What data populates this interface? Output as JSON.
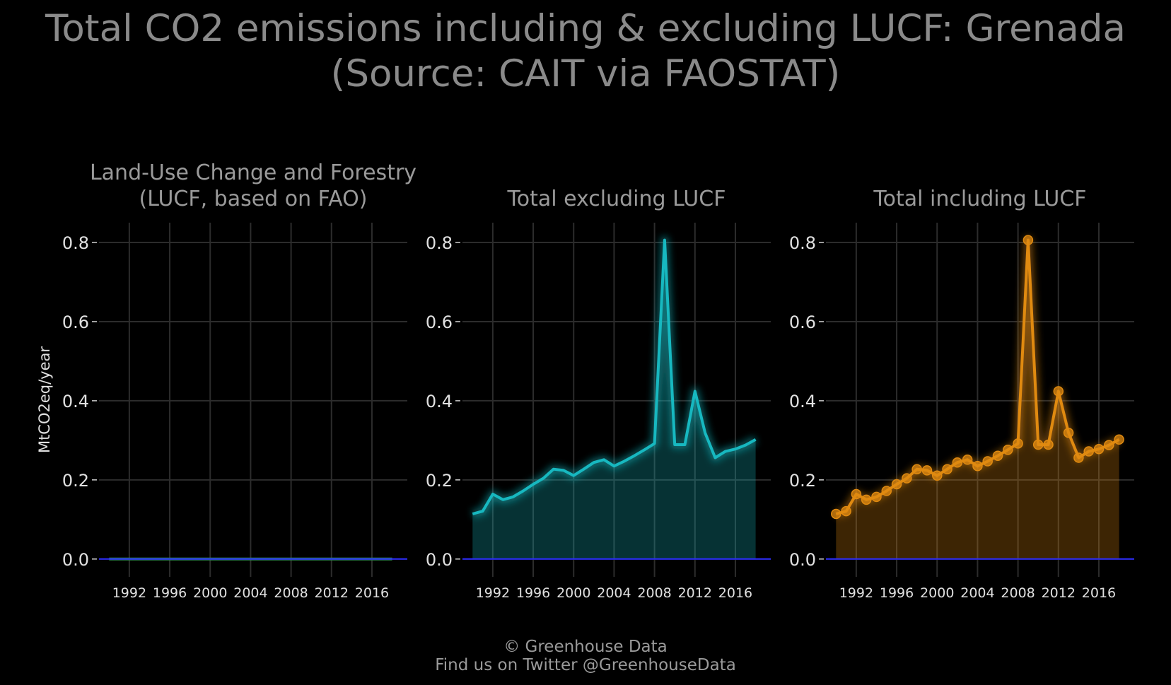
{
  "title": {
    "line1": "Total CO2 emissions including & excluding LUCF: Grenada",
    "line2": "(Source: CAIT via FAOSTAT)"
  },
  "footer": {
    "line1": "© Greenhouse Data",
    "line2": "Find us on Twitter @GreenhouseData"
  },
  "colors": {
    "background": "#000000",
    "lucf": "#2e8b57",
    "excluding": "#17b8c0",
    "including": "#e08a10",
    "baseline": "#2a2aff"
  },
  "chart_data": [
    {
      "type": "area",
      "title": "Land-Use Change and Forestry\n(LUCF, based on FAO)",
      "ylabel": "MtCO2eq/year",
      "xlabel": "",
      "xlim": [
        1989,
        2019.5
      ],
      "ylim": [
        -0.045,
        0.85
      ],
      "yticks": [
        "0.0",
        "0.2",
        "0.4",
        "0.6",
        "0.8"
      ],
      "xticks": [
        "1992",
        "1996",
        "2000",
        "2004",
        "2008",
        "2012",
        "2016"
      ],
      "grid": true,
      "x": [
        1990,
        1991,
        1992,
        1993,
        1994,
        1995,
        1996,
        1997,
        1998,
        1999,
        2000,
        2001,
        2002,
        2003,
        2004,
        2005,
        2006,
        2007,
        2008,
        2009,
        2010,
        2011,
        2012,
        2013,
        2014,
        2015,
        2016,
        2017,
        2018
      ],
      "series": [
        {
          "values": [
            0,
            0,
            0,
            0,
            0,
            0,
            0,
            0,
            0,
            0,
            0,
            0,
            0,
            0,
            0,
            0,
            0,
            0,
            0,
            0,
            0,
            0,
            0,
            0,
            0,
            0,
            0,
            0,
            0
          ]
        }
      ]
    },
    {
      "type": "area",
      "title": "Total excluding LUCF",
      "ylabel": "",
      "xlabel": "",
      "xlim": [
        1989,
        2019.5
      ],
      "ylim": [
        -0.045,
        0.85
      ],
      "yticks": [
        "0.0",
        "0.2",
        "0.4",
        "0.6",
        "0.8"
      ],
      "xticks": [
        "1992",
        "1996",
        "2000",
        "2004",
        "2008",
        "2012",
        "2016"
      ],
      "grid": true,
      "x": [
        1990,
        1991,
        1992,
        1993,
        1994,
        1995,
        1996,
        1997,
        1998,
        1999,
        2000,
        2001,
        2002,
        2003,
        2004,
        2005,
        2006,
        2007,
        2008,
        2009,
        2010,
        2011,
        2012,
        2013,
        2014,
        2015,
        2016,
        2017,
        2018
      ],
      "series": [
        {
          "values": [
            0.114,
            0.121,
            0.164,
            0.15,
            0.157,
            0.172,
            0.189,
            0.204,
            0.227,
            0.224,
            0.211,
            0.227,
            0.244,
            0.251,
            0.235,
            0.247,
            0.261,
            0.276,
            0.292,
            0.806,
            0.289,
            0.289,
            0.424,
            0.319,
            0.256,
            0.272,
            0.278,
            0.288,
            0.302
          ]
        }
      ]
    },
    {
      "type": "area",
      "title": "Total including LUCF",
      "ylabel": "",
      "xlabel": "",
      "xlim": [
        1989,
        2019.5
      ],
      "ylim": [
        -0.045,
        0.85
      ],
      "yticks": [
        "0.0",
        "0.2",
        "0.4",
        "0.6",
        "0.8"
      ],
      "xticks": [
        "1992",
        "1996",
        "2000",
        "2004",
        "2008",
        "2012",
        "2016"
      ],
      "grid": true,
      "x": [
        1990,
        1991,
        1992,
        1993,
        1994,
        1995,
        1996,
        1997,
        1998,
        1999,
        2000,
        2001,
        2002,
        2003,
        2004,
        2005,
        2006,
        2007,
        2008,
        2009,
        2010,
        2011,
        2012,
        2013,
        2014,
        2015,
        2016,
        2017,
        2018
      ],
      "series": [
        {
          "values": [
            0.114,
            0.121,
            0.164,
            0.15,
            0.157,
            0.172,
            0.189,
            0.204,
            0.227,
            0.224,
            0.211,
            0.227,
            0.244,
            0.251,
            0.235,
            0.247,
            0.261,
            0.276,
            0.292,
            0.806,
            0.289,
            0.289,
            0.424,
            0.319,
            0.256,
            0.272,
            0.278,
            0.288,
            0.302
          ]
        }
      ]
    }
  ]
}
